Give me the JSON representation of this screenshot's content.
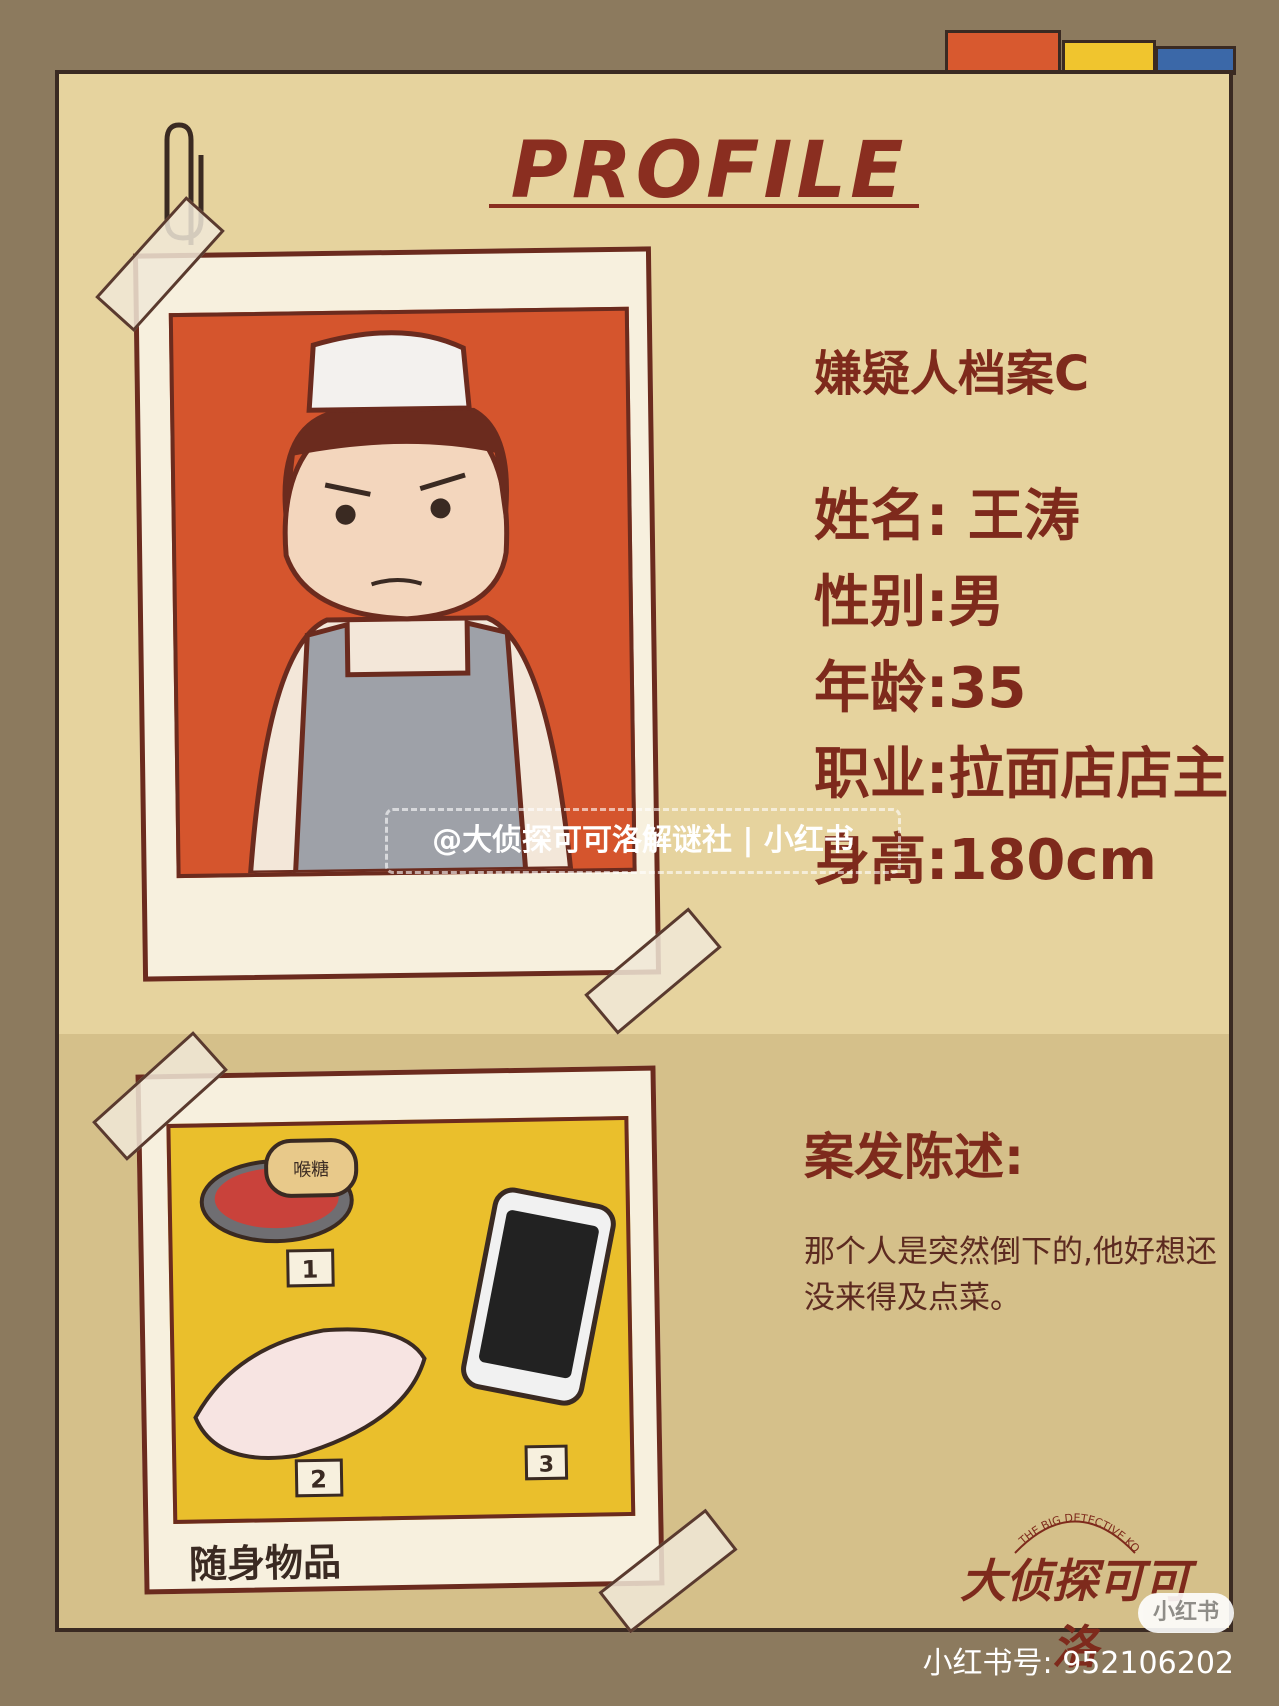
{
  "colors": {
    "background": "#8c7a5e",
    "card": "#e6d39e",
    "accent": "#7e2a1c",
    "photo_bg": "#d5552d",
    "items_bg": "#eabf2c"
  },
  "header": {
    "title": "PROFILE"
  },
  "profile": {
    "file_title": "嫌疑人档案C",
    "fields": [
      {
        "label": "姓名:",
        "value": " 王涛"
      },
      {
        "label": "性别:",
        "value": "男"
      },
      {
        "label": "年龄:",
        "value": "35"
      },
      {
        "label": "职业:",
        "value": "拉面店店主"
      },
      {
        "label": "身高:",
        "value": "180cm"
      }
    ]
  },
  "belongings": {
    "caption": "随身物品",
    "markers": [
      "1",
      "2",
      "3"
    ],
    "tin_label": "喉糖"
  },
  "statement": {
    "title": "案发陈述:",
    "text": "那个人是突然倒下的,他好想还没来得及点菜。"
  },
  "watermark": {
    "text": "@大侦探可可洛解谜社 | 小红书"
  },
  "logo": {
    "text": "大侦探可可洛",
    "ring_text": "THE BIG DETECTIVE KOKORO"
  },
  "badge": {
    "text": "小红书"
  },
  "footer": {
    "text": "小红书号: 952106202"
  }
}
